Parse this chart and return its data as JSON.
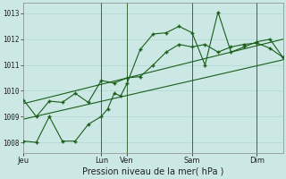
{
  "xlabel": "Pression niveau de la mer( hPa )",
  "ylim": [
    1007.6,
    1013.4
  ],
  "yticks": [
    1008,
    1009,
    1010,
    1011,
    1012,
    1013
  ],
  "xtick_labels": [
    "Jeu",
    "Lun",
    "Ven",
    "Sam",
    "Dim"
  ],
  "xtick_positions": [
    0,
    36,
    48,
    78,
    108
  ],
  "xlim": [
    0,
    120
  ],
  "background_color": "#cce8e4",
  "grid_color": "#b0d8d0",
  "line_color": "#1a5e1a",
  "vlines": [
    36,
    48,
    78,
    108
  ],
  "series1_x": [
    0,
    6,
    12,
    18,
    24,
    30,
    36,
    39,
    42,
    45,
    48,
    54,
    60,
    66,
    72,
    78,
    84,
    90,
    96,
    102,
    108,
    114,
    120
  ],
  "series1_y": [
    1008.05,
    1008.0,
    1009.0,
    1008.05,
    1008.05,
    1008.7,
    1009.0,
    1009.3,
    1009.9,
    1009.8,
    1010.3,
    1011.6,
    1012.2,
    1012.25,
    1012.5,
    1012.25,
    1011.0,
    1013.05,
    1011.5,
    1011.7,
    1011.9,
    1012.0,
    1011.3
  ],
  "series2_x": [
    0,
    6,
    12,
    18,
    24,
    30,
    36,
    42,
    48,
    54,
    60,
    66,
    72,
    78,
    84,
    90,
    96,
    102,
    108,
    114,
    120
  ],
  "series2_y": [
    1009.65,
    1009.0,
    1009.6,
    1009.55,
    1009.9,
    1009.55,
    1010.4,
    1010.3,
    1010.5,
    1010.55,
    1011.0,
    1011.5,
    1011.8,
    1011.7,
    1011.8,
    1011.5,
    1011.7,
    1011.8,
    1011.85,
    1011.65,
    1011.3
  ],
  "series3_x": [
    0,
    120
  ],
  "series3_y": [
    1008.9,
    1011.2
  ],
  "series4_x": [
    0,
    120
  ],
  "series4_y": [
    1009.5,
    1012.0
  ],
  "figsize": [
    3.2,
    2.0
  ],
  "dpi": 100
}
